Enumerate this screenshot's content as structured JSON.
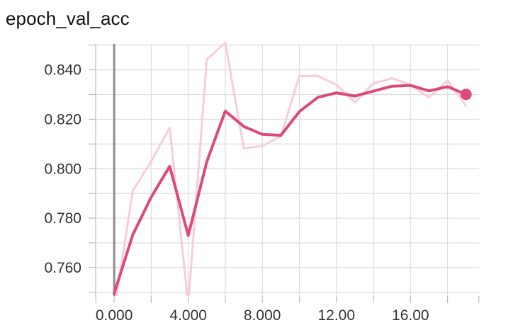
{
  "chart_data": {
    "type": "line",
    "title": "epoch_val_acc",
    "xlabel": "",
    "ylabel": "",
    "xlim": [
      -1,
      19.7
    ],
    "ylim": [
      0.7485,
      0.8505
    ],
    "grid": true,
    "x_ticks": [
      0,
      4,
      8,
      12,
      16
    ],
    "x_tick_labels": [
      "0.000",
      "4.000",
      "8.000",
      "12.00",
      "16.00"
    ],
    "y_ticks": [
      0.76,
      0.78,
      0.8,
      0.82,
      0.84
    ],
    "y_tick_labels": [
      "0.760",
      "0.780",
      "0.800",
      "0.820",
      "0.840"
    ],
    "series": [
      {
        "role": "raw",
        "color": "#f7cdd9",
        "x": [
          0,
          1,
          2,
          3,
          4,
          5,
          6,
          7,
          8,
          9,
          10,
          11,
          12,
          13,
          14,
          15,
          16,
          17,
          18,
          19
        ],
        "y": [
          0.742,
          0.791,
          0.803,
          0.8165,
          0.745,
          0.8442,
          0.851,
          0.8082,
          0.8092,
          0.8132,
          0.8375,
          0.8375,
          0.834,
          0.8268,
          0.8345,
          0.8366,
          0.834,
          0.8288,
          0.8357,
          0.8255
        ]
      },
      {
        "role": "smoothed",
        "color": "#dc4a7d",
        "x": [
          0,
          1,
          2,
          3,
          4,
          5,
          6,
          7,
          8,
          9,
          10,
          11,
          12,
          13,
          14,
          15,
          16,
          17,
          18,
          19
        ],
        "y": [
          0.7495,
          0.7732,
          0.7885,
          0.801,
          0.773,
          0.8028,
          0.8233,
          0.8171,
          0.8139,
          0.8135,
          0.8231,
          0.8289,
          0.8307,
          0.8294,
          0.8314,
          0.8334,
          0.8337,
          0.8315,
          0.8332,
          0.8301
        ]
      }
    ]
  }
}
